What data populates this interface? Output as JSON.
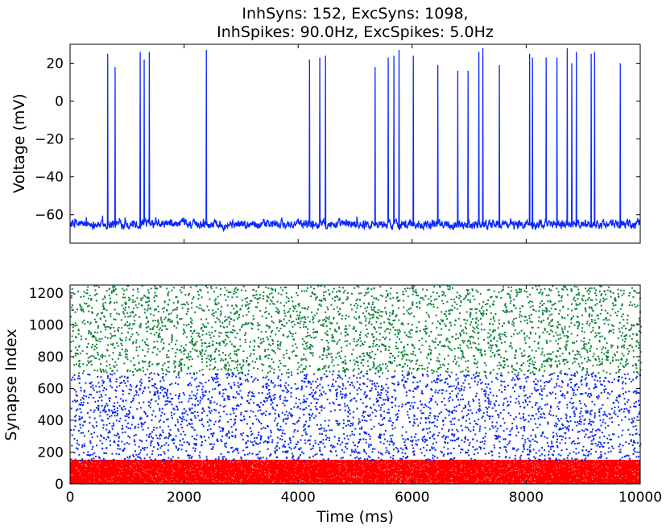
{
  "colors": {
    "voltage_trace": "#0a28ff",
    "inhibitory": "#ff0000",
    "excitatory_low": "#0a28e6",
    "excitatory_high": "#0a8232"
  },
  "chart_data": [
    {
      "type": "line",
      "title": "InhSyns: 152, ExcSyns: 1098,\nInhSpikes: 90.0Hz, ExcSpikes: 5.0Hz",
      "title_lines": [
        "InhSyns: 152, ExcSyns: 1098,",
        "InhSpikes: 90.0Hz, ExcSpikes: 5.0Hz"
      ],
      "xlabel": "",
      "ylabel": "Voltage (mV)",
      "xlim": [
        0,
        10000
      ],
      "ylim": [
        -75,
        30
      ],
      "yticks": [
        20,
        0,
        -20,
        -40,
        -60
      ],
      "ytick_labels": [
        "20",
        "0",
        "−20",
        "−40",
        "−60"
      ],
      "xticks": [
        0,
        2000,
        4000,
        6000,
        8000,
        10000
      ],
      "baseline_mv": -65,
      "noise_mv": 4,
      "spikes": [
        {
          "t": 660,
          "v": 25
        },
        {
          "t": 790,
          "v": 18
        },
        {
          "t": 1230,
          "v": 26
        },
        {
          "t": 1300,
          "v": 22
        },
        {
          "t": 1390,
          "v": 26
        },
        {
          "t": 2390,
          "v": 27
        },
        {
          "t": 4200,
          "v": 22
        },
        {
          "t": 4380,
          "v": 23
        },
        {
          "t": 4480,
          "v": 24
        },
        {
          "t": 5350,
          "v": 18
        },
        {
          "t": 5580,
          "v": 23
        },
        {
          "t": 5680,
          "v": 24
        },
        {
          "t": 5770,
          "v": 27
        },
        {
          "t": 6020,
          "v": 24
        },
        {
          "t": 6450,
          "v": 19
        },
        {
          "t": 6800,
          "v": 16
        },
        {
          "t": 6980,
          "v": 16
        },
        {
          "t": 7170,
          "v": 26
        },
        {
          "t": 7240,
          "v": 28
        },
        {
          "t": 7530,
          "v": 19
        },
        {
          "t": 8060,
          "v": 25
        },
        {
          "t": 8110,
          "v": 23
        },
        {
          "t": 8350,
          "v": 23
        },
        {
          "t": 8540,
          "v": 23
        },
        {
          "t": 8720,
          "v": 28
        },
        {
          "t": 8800,
          "v": 20
        },
        {
          "t": 8880,
          "v": 26
        },
        {
          "t": 9140,
          "v": 25
        },
        {
          "t": 9200,
          "v": 26
        },
        {
          "t": 9650,
          "v": 20
        }
      ]
    },
    {
      "type": "scatter",
      "xlabel": "Time (ms)",
      "ylabel": "Synapse Index",
      "xlim": [
        0,
        10000
      ],
      "ylim": [
        0,
        1250
      ],
      "xticks": [
        0,
        2000,
        4000,
        6000,
        8000,
        10000
      ],
      "xtick_labels": [
        "0",
        "2000",
        "4000",
        "6000",
        "8000",
        "10000"
      ],
      "yticks": [
        0,
        200,
        400,
        600,
        800,
        1000,
        1200
      ],
      "ytick_labels": [
        "0",
        "200",
        "400",
        "600",
        "800",
        "1000",
        "1200"
      ],
      "series": [
        {
          "group": "inhibitory",
          "index_range": [
            0,
            152
          ],
          "rate_hz": 90.0,
          "duration_ms": 10000
        },
        {
          "group": "excitatory",
          "index_range": [
            152,
            700
          ],
          "rate_hz": 5.0,
          "duration_ms": 10000
        },
        {
          "group": "excitatory",
          "index_range": [
            700,
            1250
          ],
          "rate_hz": 5.0,
          "duration_ms": 10000
        }
      ]
    }
  ]
}
